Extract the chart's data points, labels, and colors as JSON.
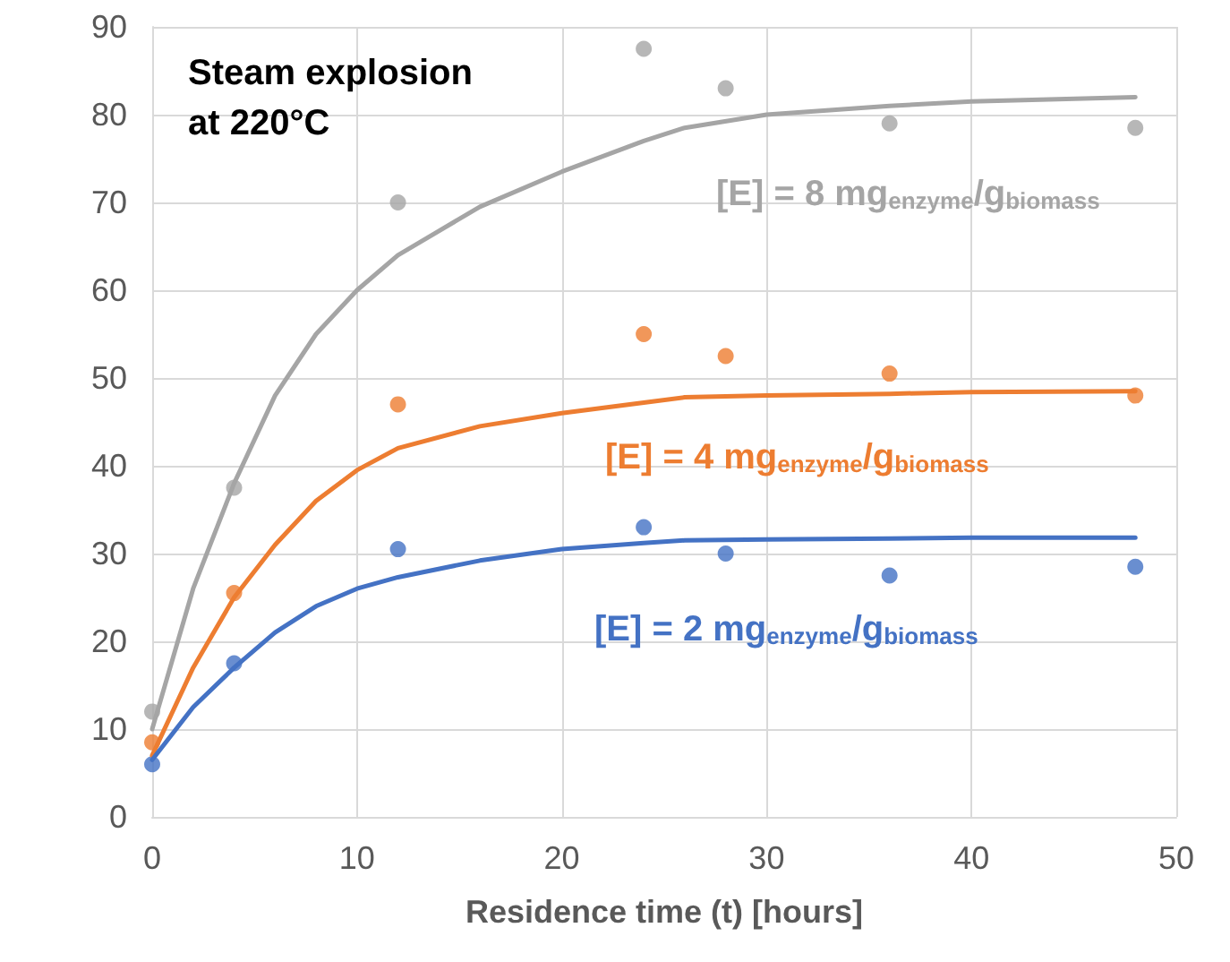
{
  "chart_data": {
    "type": "scatter",
    "title": "Steam explosion at 220°C",
    "xlabel": "Residence time (t) [hours]",
    "xlim": [
      0,
      50
    ],
    "xticks": [
      0,
      10,
      20,
      30,
      40,
      50
    ],
    "ylim": [
      0,
      90
    ],
    "yticks": [
      0,
      10,
      20,
      30,
      40,
      50,
      60,
      70,
      80,
      90
    ],
    "grid": true,
    "series": [
      {
        "marker": "circle",
        "color": "#a5a5a5",
        "x": [
          0,
          4,
          12,
          24,
          28,
          36,
          48
        ],
        "values": [
          12,
          37.5,
          70,
          87.5,
          83,
          79,
          78.5
        ]
      },
      {
        "marker": "circle",
        "color": "#ed7d31",
        "x": [
          0,
          4,
          12,
          24,
          28,
          36,
          48
        ],
        "values": [
          8.5,
          25.5,
          47,
          55,
          52.5,
          50.5,
          48
        ]
      },
      {
        "marker": "circle",
        "color": "#4472c4",
        "x": [
          0,
          4,
          12,
          24,
          28,
          36,
          48
        ],
        "values": [
          6,
          17.5,
          30.5,
          33,
          30,
          27.5,
          28.5
        ]
      },
      {
        "type": "line",
        "marker": "none",
        "color": "#a5a5a5",
        "x": [
          0,
          2,
          4,
          6,
          8,
          10,
          12,
          16,
          20,
          24,
          26,
          30,
          36,
          40,
          48
        ],
        "values": [
          10,
          26,
          38,
          48,
          55,
          60,
          64,
          69.5,
          73.5,
          77,
          78.5,
          80,
          81,
          81.5,
          82
        ]
      },
      {
        "type": "line",
        "marker": "none",
        "color": "#ed7d31",
        "x": [
          0,
          2,
          4,
          6,
          8,
          10,
          12,
          16,
          20,
          24,
          26,
          30,
          36,
          40,
          48
        ],
        "values": [
          7,
          17,
          25,
          31,
          36,
          39.5,
          42,
          44.5,
          46,
          47.2,
          47.8,
          48,
          48.2,
          48.4,
          48.5
        ]
      },
      {
        "type": "line",
        "marker": "none",
        "color": "#4472c4",
        "x": [
          0,
          2,
          4,
          6,
          8,
          10,
          12,
          16,
          20,
          24,
          26,
          30,
          36,
          40,
          48
        ],
        "values": [
          6.5,
          12.5,
          17,
          21,
          24,
          26,
          27.3,
          29.2,
          30.5,
          31.2,
          31.5,
          31.6,
          31.7,
          31.8,
          31.8
        ]
      }
    ],
    "annotations": [
      "[E] = 8 mg$_{enzyme}$/g$_{biomass}$",
      "[E] = 4 mg$_{enzyme}$/g$_{biomass}$",
      "[E] = 2 mg$_{enzyme}$/g$_{biomass}$"
    ]
  }
}
